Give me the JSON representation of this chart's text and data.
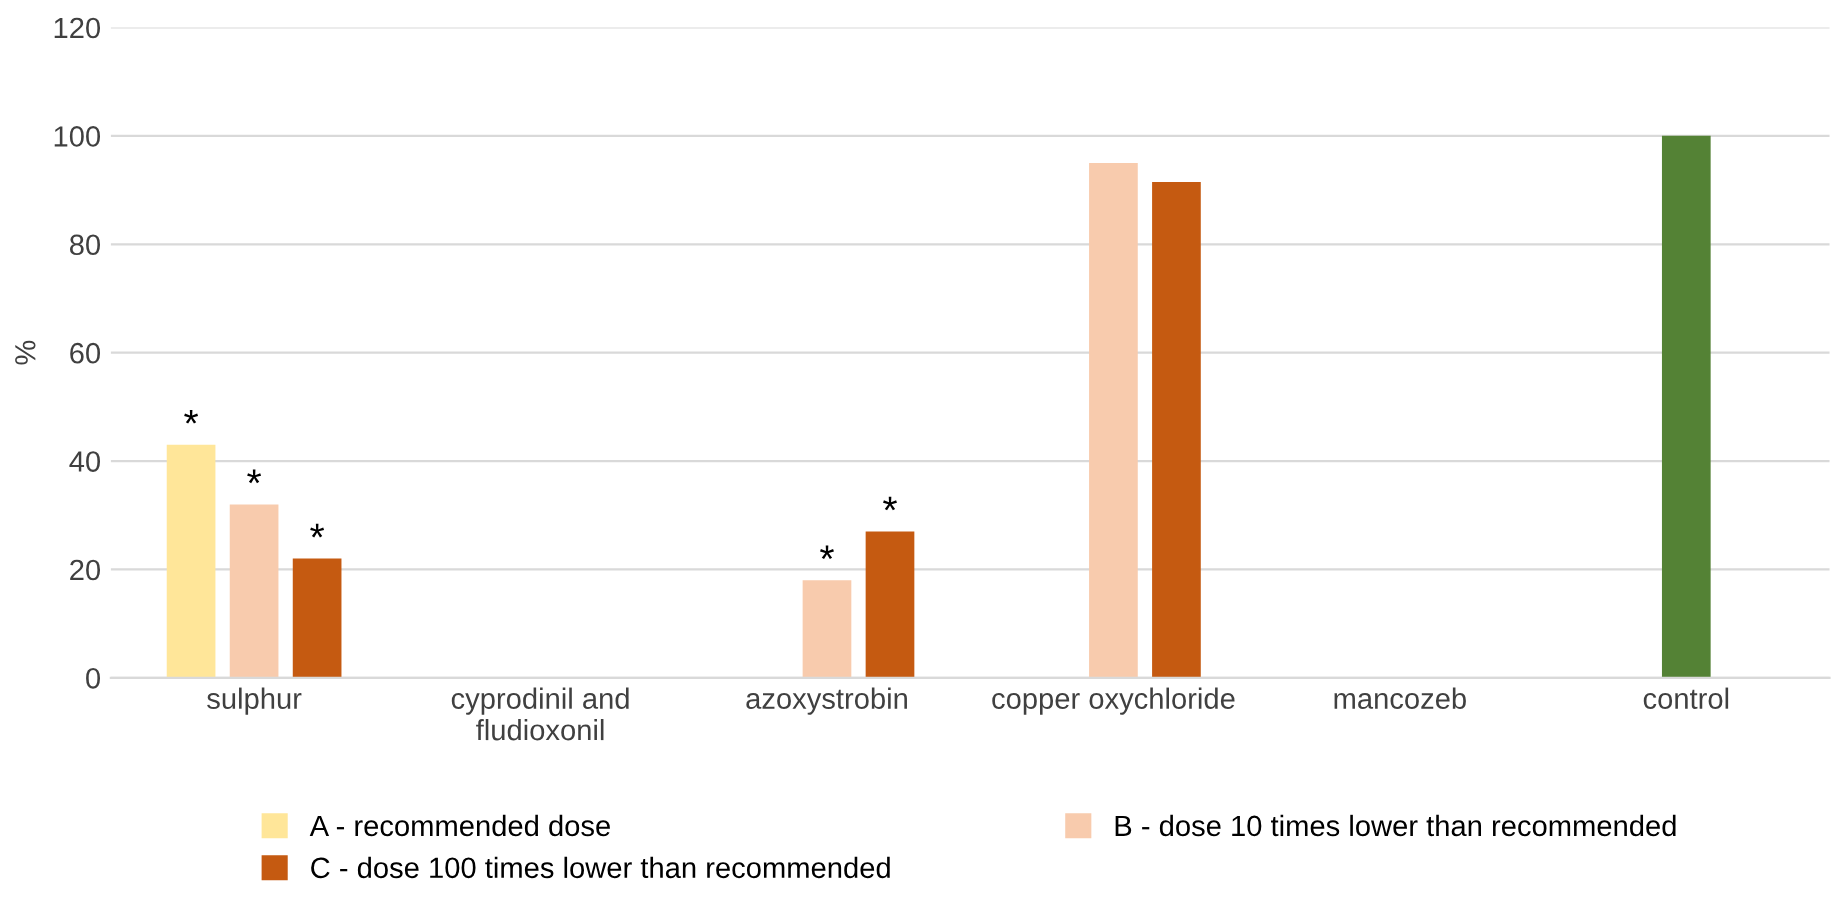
{
  "chart_data": {
    "type": "bar",
    "ylabel": "%",
    "categories": [
      "sulphur",
      "cyprodinil and\nfludioxonil",
      "azoxystrobin",
      "copper oxychloride",
      "mancozeb",
      "control"
    ],
    "series": [
      {
        "name": "A - recommended dose",
        "color": "#ffe699",
        "values": [
          43,
          0,
          null,
          null,
          0,
          null
        ],
        "value_labels": [
          "*",
          null,
          null,
          null,
          null,
          null
        ]
      },
      {
        "name": "B - dose 10 times lower than recommended",
        "color": "#f8cbad",
        "colors": [
          "#f8cbad",
          "#f8cbad",
          "#f8cbad",
          "#f8cbad",
          "#f8cbad",
          "#548235"
        ],
        "values": [
          32,
          0,
          18,
          95,
          0,
          100
        ],
        "value_labels": [
          "*",
          null,
          "*",
          null,
          null,
          null
        ]
      },
      {
        "name": "C - dose 100 times lower than recommended",
        "color": "#c55a11",
        "values": [
          22,
          0,
          27,
          91.5,
          0,
          null
        ],
        "value_labels": [
          "*",
          null,
          "*",
          null,
          null,
          null
        ]
      }
    ],
    "ylim": [
      0,
      120
    ],
    "yticks": [
      0,
      20,
      40,
      60,
      80,
      100,
      120
    ],
    "grid": "y",
    "legend": "bottom"
  }
}
